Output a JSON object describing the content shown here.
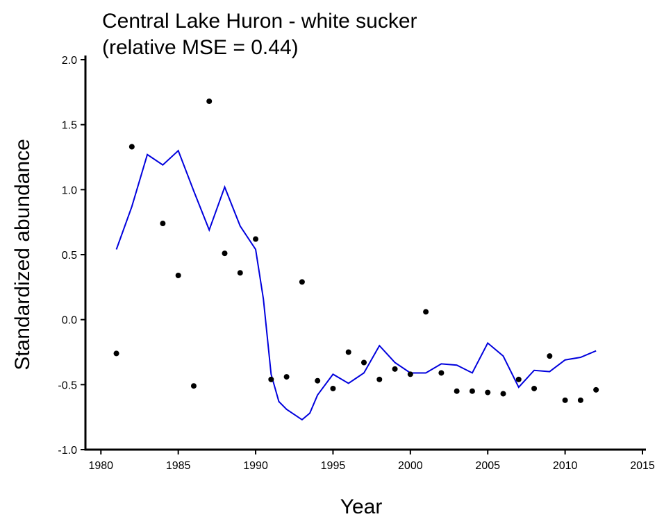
{
  "chart_data": {
    "type": "scatter",
    "title": [
      "Central Lake Huron - white sucker",
      "(relative MSE = 0.44)"
    ],
    "x_label": "Year",
    "y_label": "Standardized abundance",
    "xlim": [
      1979,
      2015
    ],
    "ylim": [
      -1,
      2
    ],
    "xticks": [
      1980,
      1985,
      1990,
      1995,
      2000,
      2005,
      2010,
      2015
    ],
    "yticks": [
      {
        "value": 2,
        "label": "2.0"
      },
      {
        "value": 1.5,
        "label": "1.5"
      },
      {
        "value": 1,
        "label": "1.0"
      },
      {
        "value": 0.5,
        "label": "0.5"
      },
      {
        "value": 0,
        "label": "0.0"
      },
      {
        "value": -0.5,
        "label": "-0.5"
      },
      {
        "value": -1,
        "label": "-1.0"
      }
    ],
    "points": {
      "color": "#000000",
      "x": [
        1981,
        1982,
        1984,
        1985,
        1986,
        1987,
        1988,
        1989,
        1990,
        1991,
        1992,
        1993,
        1994,
        1995,
        1996,
        1997,
        1998,
        1999,
        2000,
        2001,
        2002,
        2003,
        2004,
        2005,
        2006,
        2007,
        2008,
        2009,
        2010,
        2011,
        2012
      ],
      "values": [
        -0.26,
        1.33,
        0.74,
        0.34,
        -0.51,
        1.68,
        0.51,
        0.36,
        0.62,
        -0.46,
        -0.44,
        0.29,
        -0.47,
        -0.53,
        -0.25,
        -0.33,
        -0.46,
        -0.38,
        -0.42,
        0.06,
        -0.41,
        -0.55,
        -0.55,
        -0.56,
        -0.57,
        -0.46,
        -0.53,
        -0.28,
        -0.62,
        -0.62,
        -0.54
      ]
    },
    "line": {
      "color": "#0000dd",
      "x": [
        1981,
        1982,
        1983,
        1984,
        1985,
        1986,
        1987,
        1988,
        1989,
        1990,
        1990.5,
        1991,
        1991.5,
        1992,
        1992.5,
        1993,
        1993.5,
        1994,
        1995,
        1996,
        1997,
        1998,
        1999,
        2000,
        2001,
        2002,
        2003,
        2004,
        2005,
        2006,
        2007,
        2008,
        2009,
        2010,
        2011,
        2012
      ],
      "values": [
        0.54,
        0.87,
        1.27,
        1.19,
        1.3,
        0.99,
        0.69,
        1.02,
        0.72,
        0.54,
        0.16,
        -0.42,
        -0.63,
        -0.69,
        -0.73,
        -0.77,
        -0.72,
        -0.58,
        -0.42,
        -0.49,
        -0.41,
        -0.2,
        -0.33,
        -0.41,
        -0.41,
        -0.34,
        -0.35,
        -0.41,
        -0.18,
        -0.28,
        -0.52,
        -0.39,
        -0.4,
        -0.31,
        -0.29,
        -0.24
      ]
    }
  }
}
